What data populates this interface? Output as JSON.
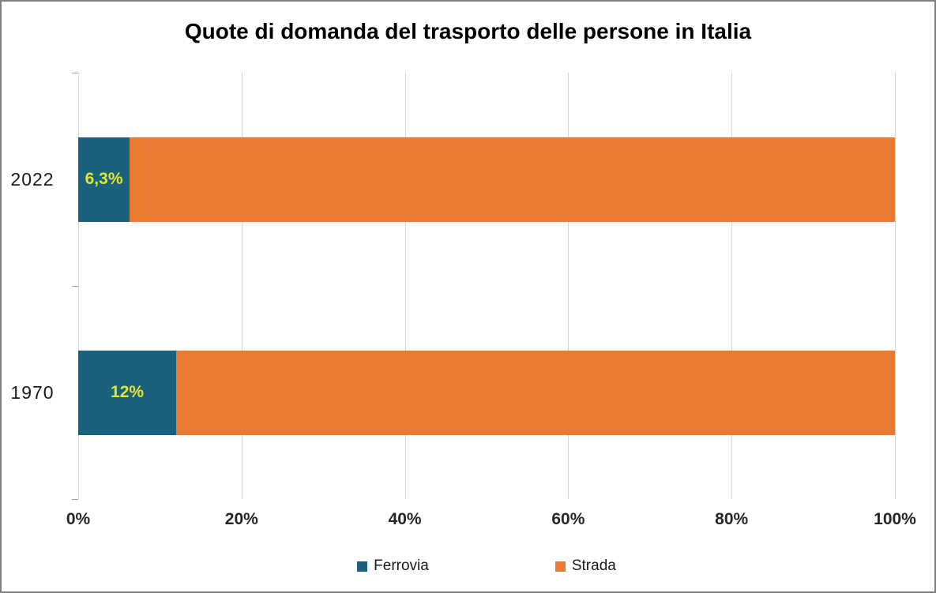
{
  "chart_data": {
    "type": "bar",
    "orientation": "horizontal",
    "stacked": true,
    "title": "Quote di domanda del trasporto delle persone in Italia",
    "categories": [
      "2022",
      "1970"
    ],
    "series": [
      {
        "name": "Ferrovia",
        "color": "#1A617E",
        "values": [
          6.3,
          12
        ]
      },
      {
        "name": "Strada",
        "color": "#E87B30",
        "values": [
          93.7,
          88
        ]
      }
    ],
    "data_labels": {
      "on_series": "Ferrovia",
      "texts": [
        "6,3%",
        "12%"
      ],
      "color": "#E3E62A"
    },
    "x_axis": {
      "min": 0,
      "max": 100,
      "tick_labels": [
        "0%",
        "20%",
        "40%",
        "60%",
        "80%",
        "100%"
      ]
    },
    "legend": {
      "position": "bottom",
      "items": [
        {
          "label": "Ferrovia",
          "color": "#1A617E"
        },
        {
          "label": "Strada",
          "color": "#E87B30"
        }
      ]
    },
    "grid": {
      "vertical": true,
      "color": "#D6D6D6"
    }
  }
}
